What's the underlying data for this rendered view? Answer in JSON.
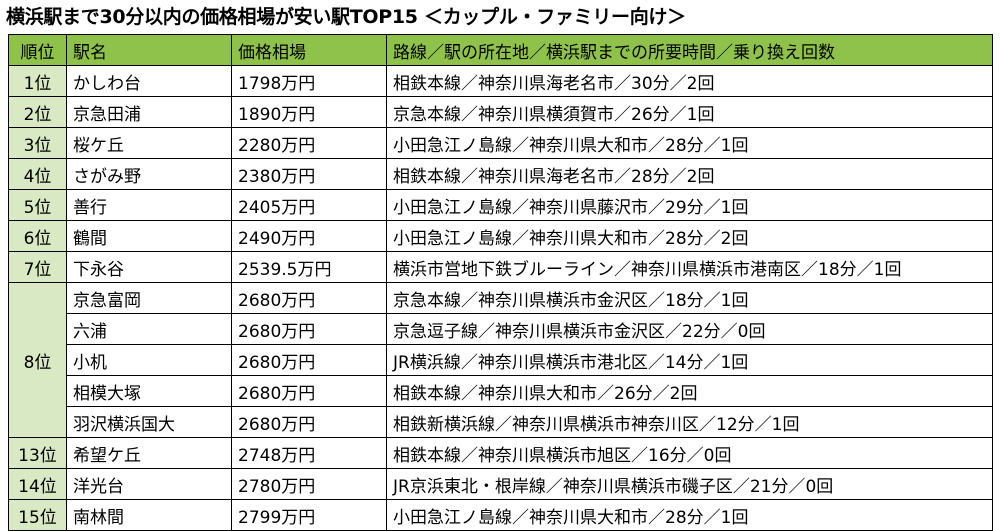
{
  "title": "横浜駅まで30分以内の価格相場が安い駅TOP15 ＜カップル・ファミリー向け＞",
  "colors": {
    "header_bg": "#8fc24a",
    "rank_bg": "#d9e9c4",
    "border": "#000000"
  },
  "table": {
    "headers": [
      "順位",
      "駅名",
      "価格相場",
      "路線／駅の所在地／横浜駅までの所要時間／乗り換え回数"
    ],
    "groups": [
      {
        "rank": "1位",
        "rows": [
          {
            "station": "かしわ台",
            "price": "1798万円",
            "route": "相鉄本線／神奈川県海老名市／30分／2回"
          }
        ]
      },
      {
        "rank": "2位",
        "rows": [
          {
            "station": "京急田浦",
            "price": "1890万円",
            "route": "京急本線／神奈川県横須賀市／26分／1回"
          }
        ]
      },
      {
        "rank": "3位",
        "rows": [
          {
            "station": "桜ケ丘",
            "price": "2280万円",
            "route": "小田急江ノ島線／神奈川県大和市／28分／1回"
          }
        ]
      },
      {
        "rank": "4位",
        "rows": [
          {
            "station": "さがみ野",
            "price": "2380万円",
            "route": "相鉄本線／神奈川県海老名市／28分／2回"
          }
        ]
      },
      {
        "rank": "5位",
        "rows": [
          {
            "station": "善行",
            "price": "2405万円",
            "route": "小田急江ノ島線／神奈川県藤沢市／29分／1回"
          }
        ]
      },
      {
        "rank": "6位",
        "rows": [
          {
            "station": "鶴間",
            "price": "2490万円",
            "route": "小田急江ノ島線／神奈川県大和市／28分／2回"
          }
        ]
      },
      {
        "rank": "7位",
        "rows": [
          {
            "station": "下永谷",
            "price": "2539.5万円",
            "route": "横浜市営地下鉄ブルーライン／神奈川県横浜市港南区／18分／1回"
          }
        ]
      },
      {
        "rank": "8位",
        "rows": [
          {
            "station": "京急富岡",
            "price": "2680万円",
            "route": "京急本線／神奈川県横浜市金沢区／18分／1回"
          },
          {
            "station": "六浦",
            "price": "2680万円",
            "route": "京急逗子線／神奈川県横浜市金沢区／22分／0回"
          },
          {
            "station": "小机",
            "price": "2680万円",
            "route": "JR横浜線／神奈川県横浜市港北区／14分／1回"
          },
          {
            "station": "相模大塚",
            "price": "2680万円",
            "route": "相鉄本線／神奈川県大和市／26分／2回"
          },
          {
            "station": "羽沢横浜国大",
            "price": "2680万円",
            "route": "相鉄新横浜線／神奈川県横浜市神奈川区／12分／1回"
          }
        ]
      },
      {
        "rank": "13位",
        "rows": [
          {
            "station": "希望ケ丘",
            "price": "2748万円",
            "route": "相鉄本線／神奈川県横浜市旭区／16分／0回"
          }
        ]
      },
      {
        "rank": "14位",
        "rows": [
          {
            "station": "洋光台",
            "price": "2780万円",
            "route": "JR京浜東北・根岸線／神奈川県横浜市磯子区／21分／0回"
          }
        ]
      },
      {
        "rank": "15位",
        "rows": [
          {
            "station": "南林間",
            "price": "2799万円",
            "route": "小田急江ノ島線／神奈川県大和市／28分／1回"
          }
        ]
      }
    ]
  }
}
